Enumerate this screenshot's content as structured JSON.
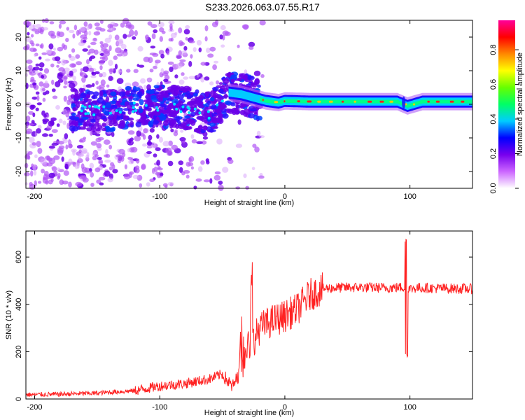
{
  "title": "S233.2026.063.07.55.R17",
  "chart_data": [
    {
      "type": "heatmap",
      "xlabel": "Height of straight line (km)",
      "ylabel": "Frequency (Hz)",
      "xlim": [
        -207,
        150
      ],
      "ylim": [
        -25,
        25
      ],
      "xticks": [
        -200,
        -100,
        0,
        100
      ],
      "yticks": [
        -20,
        -10,
        0,
        10,
        20
      ],
      "colorbar": {
        "label": "Normalized spectral amplitude",
        "range": [
          0,
          0.97
        ],
        "ticks": [
          "0.0",
          "0.2",
          "0.4",
          "0.6",
          "0.8"
        ],
        "tick_values": [
          0,
          0.2,
          0.4,
          0.6,
          0.8
        ],
        "colors": [
          "#ffffff",
          "#cc66ff",
          "#7700ee",
          "#0000ff",
          "#00ccff",
          "#00ff66",
          "#66ff00",
          "#ffff00",
          "#ff8800",
          "#ff0000",
          "#ff0099"
        ]
      },
      "ridge": {
        "description_points_x": [
          -165,
          -140,
          -120,
          -100,
          -80,
          -60,
          -45,
          -35,
          -25,
          -15,
          -5,
          0,
          20,
          50,
          90,
          98,
          110,
          150
        ],
        "description_points_y": [
          -1.5,
          -2,
          -1,
          -0.5,
          -1,
          -3,
          3.5,
          3,
          2,
          1,
          0.5,
          1,
          0.8,
          0.8,
          0.8,
          -0.5,
          0.8,
          0.8
        ]
      }
    },
    {
      "type": "line",
      "xlabel": "Height of straight line (km)",
      "ylabel": "SNR (10 * v/v)",
      "xlim": [
        -207,
        150
      ],
      "ylim": [
        0,
        710
      ],
      "xticks": [
        -200,
        -100,
        0,
        100
      ],
      "yticks": [
        0,
        200,
        400,
        600
      ],
      "color": "#ff0000",
      "series": [
        {
          "name": "SNR",
          "x": [
            -207,
            -180,
            -150,
            -120,
            -100,
            -80,
            -60,
            -50,
            -42,
            -35,
            -30,
            -25,
            -20,
            -10,
            0,
            10,
            20,
            30,
            40,
            60,
            80,
            95,
            98,
            100,
            105,
            120,
            150
          ],
          "values": [
            18,
            20,
            25,
            35,
            55,
            65,
            85,
            105,
            50,
            120,
            220,
            250,
            300,
            330,
            350,
            380,
            440,
            465,
            470,
            472,
            470,
            472,
            475,
            465,
            470,
            468,
            465
          ]
        }
      ]
    }
  ]
}
